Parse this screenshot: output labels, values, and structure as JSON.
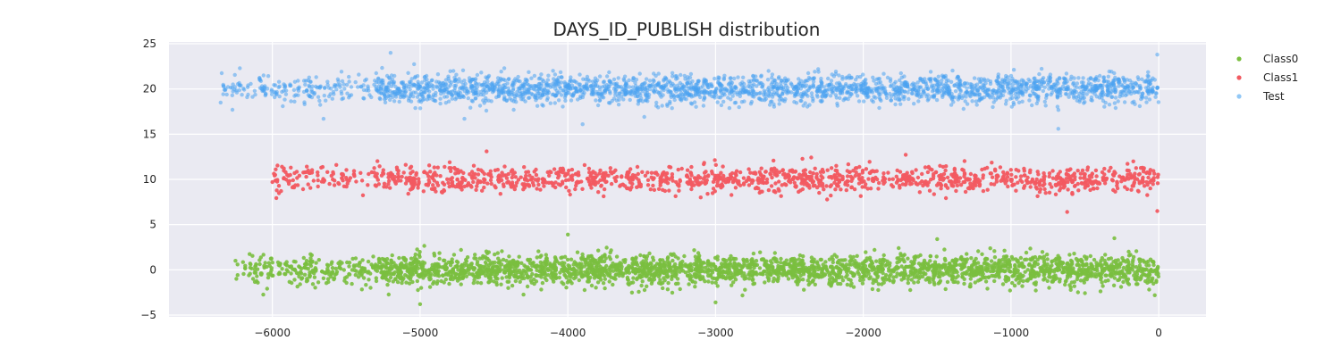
{
  "chart_data": {
    "type": "scatter",
    "title": "DAYS_ID_PUBLISH distribution",
    "xlabel": "",
    "ylabel": "",
    "xlim": [
      -6700,
      320
    ],
    "ylim": [
      -5.2,
      25.2
    ],
    "x_ticks": [
      {
        "value": -6000,
        "label": "−6000"
      },
      {
        "value": -5000,
        "label": "−5000"
      },
      {
        "value": -4000,
        "label": "−4000"
      },
      {
        "value": -3000,
        "label": "−3000"
      },
      {
        "value": -2000,
        "label": "−2000"
      },
      {
        "value": -1000,
        "label": "−1000"
      },
      {
        "value": 0,
        "label": "0"
      }
    ],
    "y_ticks": [
      {
        "value": -5,
        "label": "−5"
      },
      {
        "value": 0,
        "label": "0"
      },
      {
        "value": 5,
        "label": "5"
      },
      {
        "value": 10,
        "label": "10"
      },
      {
        "value": 15,
        "label": "15"
      },
      {
        "value": 20,
        "label": "20"
      },
      {
        "value": 25,
        "label": "25"
      }
    ],
    "grid": true,
    "legend_position": "right",
    "series": [
      {
        "name": "Class0",
        "color": "#7abf3f",
        "y_center": 0,
        "y_spread": 1.0,
        "x_range": [
          -6250,
          0
        ],
        "note_points": [
          [
            -6250,
            1.0
          ],
          [
            -5950,
            0.5
          ],
          [
            -4000,
            3.9
          ],
          [
            -3000,
            -3.6
          ],
          [
            -5000,
            -3.8
          ],
          [
            -300,
            3.5
          ],
          [
            -1500,
            3.4
          ]
        ]
      },
      {
        "name": "Class1",
        "color": "#f25a61",
        "y_center": 10,
        "y_spread": 0.9,
        "x_range": [
          -6000,
          0
        ],
        "note_points": [
          [
            -6000,
            9.7
          ],
          [
            -5850,
            10.7
          ],
          [
            -5750,
            10.7
          ],
          [
            -5600,
            10.4
          ],
          [
            -4550,
            13.1
          ],
          [
            -620,
            6.4
          ],
          [
            -10,
            6.5
          ],
          [
            -5900,
            10.5
          ]
        ]
      },
      {
        "name": "Test",
        "color": "#4aa3f0",
        "y_center": 20,
        "y_spread": 1.0,
        "x_range": [
          -6350,
          0
        ],
        "note_points": [
          [
            -6350,
            18.5
          ],
          [
            -6220,
            22.3
          ],
          [
            -5200,
            24.0
          ],
          [
            -10,
            23.8
          ],
          [
            -680,
            15.6
          ],
          [
            -4700,
            16.7
          ],
          [
            -3900,
            16.1
          ]
        ]
      }
    ]
  }
}
